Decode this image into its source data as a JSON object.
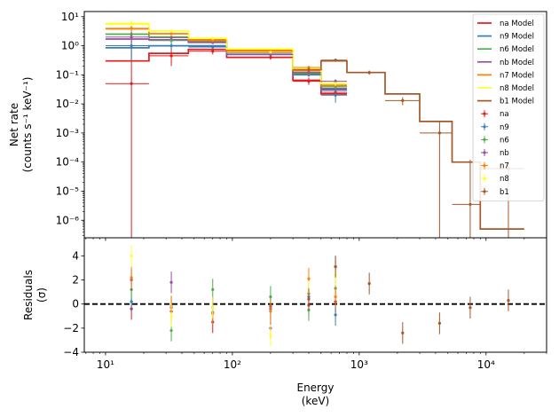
{
  "chart_data": [
    {
      "type": "line",
      "panel": "upper",
      "ylabel_lines": [
        "Net rate",
        "(counts s⁻¹ keV⁻¹)"
      ],
      "xscale": "log",
      "yscale": "log",
      "xlim": [
        6.8,
        30000
      ],
      "ylim": [
        2.5e-07,
        15
      ],
      "x_ticks": [
        {
          "value": 10,
          "label": "10¹"
        },
        {
          "value": 100,
          "label": "10²"
        },
        {
          "value": 1000,
          "label": "10³"
        },
        {
          "value": 10000,
          "label": "10⁴"
        }
      ],
      "y_ticks": [
        {
          "value": 1e-06,
          "label": "10⁻⁶"
        },
        {
          "value": 1e-05,
          "label": "10⁻⁵"
        },
        {
          "value": 0.0001,
          "label": "10⁻⁴"
        },
        {
          "value": 0.001,
          "label": "10⁻³"
        },
        {
          "value": 0.01,
          "label": "10⁻²"
        },
        {
          "value": 0.1,
          "label": "10⁻¹"
        },
        {
          "value": 1,
          "label": "10⁰"
        },
        {
          "value": 10,
          "label": "10¹"
        }
      ],
      "legend_position": "upper right",
      "models": [
        {
          "name": "na Model",
          "color": "#e41a1c",
          "edges": [
            10,
            22,
            45,
            90,
            300,
            500,
            800
          ],
          "values": [
            0.3,
            0.55,
            0.75,
            0.4,
            0.065,
            0.022
          ]
        },
        {
          "name": "n9 Model",
          "color": "#377eb8",
          "edges": [
            10,
            22,
            45,
            90,
            300,
            500,
            800
          ],
          "values": [
            0.85,
            1.0,
            1.0,
            0.5,
            0.1,
            0.03
          ]
        },
        {
          "name": "n6 Model",
          "color": "#4daf4a",
          "edges": [
            10,
            22,
            45,
            90,
            300,
            500,
            800
          ],
          "values": [
            2.5,
            2.0,
            1.4,
            0.6,
            0.12,
            0.035
          ]
        },
        {
          "name": "nb Model",
          "color": "#984ea3",
          "edges": [
            10,
            22,
            45,
            90,
            300,
            500,
            800
          ],
          "values": [
            1.7,
            1.6,
            1.3,
            0.58,
            0.11,
            0.033
          ]
        },
        {
          "name": "n7 Model",
          "color": "#ff7f00",
          "edges": [
            10,
            22,
            45,
            90,
            300,
            500,
            800
          ],
          "values": [
            3.8,
            2.6,
            1.6,
            0.7,
            0.14,
            0.042
          ]
        },
        {
          "name": "n8 Model",
          "color": "#ffff33",
          "edges": [
            10,
            22,
            45,
            90,
            300,
            500,
            800
          ],
          "values": [
            5.5,
            3.2,
            1.8,
            0.78,
            0.16,
            0.05
          ]
        },
        {
          "name": "b1 Model",
          "color": "#a65628",
          "edges": [
            300,
            500,
            800,
            1600,
            3000,
            5400,
            9000,
            20000
          ],
          "values": [
            0.15,
            0.3,
            0.12,
            0.022,
            0.0025,
            0.0001,
            5e-07
          ]
        }
      ],
      "data": [
        {
          "name": "na",
          "color": "#e41a1c",
          "points": [
            {
              "x": 16,
              "xlo": 10,
              "xhi": 22,
              "y": 0.05,
              "ylo": 2.5e-07,
              "yhi": 3.0
            },
            {
              "x": 33,
              "xlo": 22,
              "xhi": 45,
              "y": 0.45,
              "ylo": 0.2,
              "yhi": 1.0
            },
            {
              "x": 70,
              "xlo": 45,
              "xhi": 90,
              "y": 0.65,
              "ylo": 0.5,
              "yhi": 0.9
            },
            {
              "x": 200,
              "xlo": 90,
              "xhi": 300,
              "y": 0.4,
              "ylo": 0.33,
              "yhi": 0.5
            },
            {
              "x": 400,
              "xlo": 300,
              "xhi": 500,
              "y": 0.06,
              "ylo": 0.045,
              "yhi": 0.08
            },
            {
              "x": 650,
              "xlo": 500,
              "xhi": 800,
              "y": 0.025,
              "ylo": 0.02,
              "yhi": 0.03
            }
          ]
        },
        {
          "name": "n9",
          "color": "#377eb8",
          "points": [
            {
              "x": 16,
              "xlo": 10,
              "xhi": 22,
              "y": 1.0,
              "ylo": 0.3,
              "yhi": 2.0
            },
            {
              "x": 33,
              "xlo": 22,
              "xhi": 45,
              "y": 1.0,
              "ylo": 0.7,
              "yhi": 1.3
            },
            {
              "x": 70,
              "xlo": 45,
              "xhi": 90,
              "y": 0.9,
              "ylo": 0.75,
              "yhi": 1.05
            },
            {
              "x": 200,
              "xlo": 90,
              "xhi": 300,
              "y": 0.5,
              "ylo": 0.44,
              "yhi": 0.56
            },
            {
              "x": 400,
              "xlo": 300,
              "xhi": 500,
              "y": 0.1,
              "ylo": 0.085,
              "yhi": 0.12
            },
            {
              "x": 650,
              "xlo": 500,
              "xhi": 800,
              "y": 0.02,
              "ylo": 0.011,
              "yhi": 0.03
            }
          ]
        },
        {
          "name": "n6",
          "color": "#4daf4a",
          "points": [
            {
              "x": 16,
              "xlo": 10,
              "xhi": 22,
              "y": 2.5,
              "ylo": 1.5,
              "yhi": 3.5
            },
            {
              "x": 33,
              "xlo": 22,
              "xhi": 45,
              "y": 1.5,
              "ylo": 1.2,
              "yhi": 1.8
            },
            {
              "x": 70,
              "xlo": 45,
              "xhi": 90,
              "y": 1.5,
              "ylo": 1.3,
              "yhi": 1.7
            },
            {
              "x": 200,
              "xlo": 90,
              "xhi": 300,
              "y": 0.65,
              "ylo": 0.58,
              "yhi": 0.72
            },
            {
              "x": 400,
              "xlo": 300,
              "xhi": 500,
              "y": 0.11,
              "ylo": 0.095,
              "yhi": 0.13
            },
            {
              "x": 650,
              "xlo": 500,
              "xhi": 800,
              "y": 0.04,
              "ylo": 0.032,
              "yhi": 0.048
            }
          ]
        },
        {
          "name": "nb",
          "color": "#984ea3",
          "points": [
            {
              "x": 16,
              "xlo": 10,
              "xhi": 22,
              "y": 2.0,
              "ylo": 1.3,
              "yhi": 2.8
            },
            {
              "x": 33,
              "xlo": 22,
              "xhi": 45,
              "y": 1.9,
              "ylo": 1.6,
              "yhi": 2.2
            },
            {
              "x": 70,
              "xlo": 45,
              "xhi": 90,
              "y": 1.3,
              "ylo": 1.15,
              "yhi": 1.45
            },
            {
              "x": 200,
              "xlo": 90,
              "xhi": 300,
              "y": 0.5,
              "ylo": 0.45,
              "yhi": 0.56
            },
            {
              "x": 400,
              "xlo": 300,
              "xhi": 500,
              "y": 0.12,
              "ylo": 0.1,
              "yhi": 0.14
            },
            {
              "x": 650,
              "xlo": 500,
              "xhi": 800,
              "y": 0.06,
              "ylo": 0.05,
              "yhi": 0.07
            }
          ]
        },
        {
          "name": "n7",
          "color": "#ff7f00",
          "points": [
            {
              "x": 16,
              "xlo": 10,
              "xhi": 22,
              "y": 4.0,
              "ylo": 3.0,
              "yhi": 5.0
            },
            {
              "x": 33,
              "xlo": 22,
              "xhi": 45,
              "y": 2.6,
              "ylo": 2.2,
              "yhi": 3.0
            },
            {
              "x": 70,
              "xlo": 45,
              "xhi": 90,
              "y": 1.5,
              "ylo": 1.3,
              "yhi": 1.7
            },
            {
              "x": 200,
              "xlo": 90,
              "xhi": 300,
              "y": 0.65,
              "ylo": 0.58,
              "yhi": 0.72
            },
            {
              "x": 400,
              "xlo": 300,
              "xhi": 500,
              "y": 0.18,
              "ylo": 0.16,
              "yhi": 0.2
            },
            {
              "x": 650,
              "xlo": 500,
              "xhi": 800,
              "y": 0.045,
              "ylo": 0.038,
              "yhi": 0.052
            }
          ]
        },
        {
          "name": "n8",
          "color": "#ffff33",
          "points": [
            {
              "x": 16,
              "xlo": 10,
              "xhi": 22,
              "y": 6.0,
              "ylo": 4.8,
              "yhi": 7.2
            },
            {
              "x": 33,
              "xlo": 22,
              "xhi": 45,
              "y": 3.2,
              "ylo": 2.8,
              "yhi": 3.6
            },
            {
              "x": 70,
              "xlo": 45,
              "xhi": 90,
              "y": 1.8,
              "ylo": 1.6,
              "yhi": 2.0
            },
            {
              "x": 200,
              "xlo": 90,
              "xhi": 300,
              "y": 0.6,
              "ylo": 0.54,
              "yhi": 0.66
            },
            {
              "x": 400,
              "xlo": 300,
              "xhi": 500,
              "y": 0.15,
              "ylo": 0.13,
              "yhi": 0.17
            },
            {
              "x": 650,
              "xlo": 500,
              "xhi": 800,
              "y": 0.05,
              "ylo": 0.042,
              "yhi": 0.058
            }
          ]
        },
        {
          "name": "b1",
          "color": "#a65628",
          "points": [
            {
              "x": 400,
              "xlo": 300,
              "xhi": 500,
              "y": 0.15,
              "ylo": 0.12,
              "yhi": 0.18
            },
            {
              "x": 650,
              "xlo": 500,
              "xhi": 800,
              "y": 0.32,
              "ylo": 0.28,
              "yhi": 0.36
            },
            {
              "x": 1200,
              "xlo": 800,
              "xhi": 1600,
              "y": 0.12,
              "ylo": 0.1,
              "yhi": 0.14
            },
            {
              "x": 2200,
              "xlo": 1600,
              "xhi": 3000,
              "y": 0.013,
              "ylo": 0.009,
              "yhi": 0.017
            },
            {
              "x": 4300,
              "xlo": 3000,
              "xhi": 5400,
              "y": 0.001,
              "ylo": 2.5e-07,
              "yhi": 0.0025
            },
            {
              "x": 7500,
              "xlo": 5400,
              "xhi": 9000,
              "y": 3.5e-06,
              "ylo": 2.5e-07,
              "yhi": 0.00012
            },
            {
              "x": 15000,
              "xlo": 9000,
              "xhi": 20000,
              "y": 6e-05,
              "ylo": 2.5e-07,
              "yhi": 0.0001
            }
          ]
        }
      ]
    },
    {
      "type": "scatter",
      "panel": "lower",
      "xlabel_lines": [
        "Energy",
        "(keV)"
      ],
      "ylabel_lines": [
        "Residuals",
        "(σ)"
      ],
      "xscale": "log",
      "xlim": [
        6.8,
        30000
      ],
      "ylim": [
        -4,
        5.5
      ],
      "x_ticks": [
        {
          "value": 10,
          "label": "10¹"
        },
        {
          "value": 100,
          "label": "10²"
        },
        {
          "value": 1000,
          "label": "10³"
        },
        {
          "value": 10000,
          "label": "10⁴"
        }
      ],
      "y_ticks": [
        {
          "value": -4,
          "label": "−4"
        },
        {
          "value": -2,
          "label": "−2"
        },
        {
          "value": 0,
          "label": "0"
        },
        {
          "value": 2,
          "label": "2"
        },
        {
          "value": 4,
          "label": "4"
        }
      ],
      "reference_line": 0,
      "series": [
        {
          "name": "na",
          "color": "#e41a1c",
          "points": [
            [
              16,
              -0.4
            ],
            [
              33,
              -0.6
            ],
            [
              70,
              -1.5
            ],
            [
              200,
              -0.2
            ],
            [
              400,
              -0.1
            ],
            [
              650,
              0.2
            ]
          ]
        },
        {
          "name": "n9",
          "color": "#377eb8",
          "points": [
            [
              16,
              0.2
            ],
            [
              33,
              -0.3
            ],
            [
              70,
              -0.7
            ],
            [
              200,
              -0.4
            ],
            [
              400,
              0.6
            ],
            [
              650,
              -0.9
            ]
          ]
        },
        {
          "name": "n6",
          "color": "#4daf4a",
          "points": [
            [
              16,
              1.2
            ],
            [
              33,
              -2.2
            ],
            [
              70,
              1.2
            ],
            [
              200,
              0.6
            ],
            [
              400,
              -0.5
            ],
            [
              650,
              1.3
            ]
          ]
        },
        {
          "name": "nb",
          "color": "#984ea3",
          "points": [
            [
              16,
              2.0
            ],
            [
              33,
              1.8
            ],
            [
              70,
              -0.3
            ],
            [
              200,
              -2.0
            ],
            [
              400,
              0.9
            ],
            [
              650,
              3.1
            ]
          ]
        },
        {
          "name": "n7",
          "color": "#ff7f00",
          "points": [
            [
              16,
              2.2
            ],
            [
              33,
              -0.2
            ],
            [
              70,
              -0.8
            ],
            [
              200,
              -0.6
            ],
            [
              400,
              2.1
            ],
            [
              650,
              0.6
            ]
          ]
        },
        {
          "name": "n8",
          "color": "#ffff33",
          "points": [
            [
              16,
              4.0
            ],
            [
              33,
              -1.0
            ],
            [
              70,
              -0.3
            ],
            [
              200,
              -2.6
            ],
            [
              400,
              1.0
            ],
            [
              650,
              2.4
            ]
          ]
        },
        {
          "name": "b1",
          "color": "#a65628",
          "points": [
            [
              400,
              0.4
            ],
            [
              650,
              3.1
            ],
            [
              1200,
              1.7
            ],
            [
              2200,
              -2.4
            ],
            [
              4300,
              -1.6
            ],
            [
              7500,
              -0.3
            ],
            [
              15000,
              0.3
            ]
          ]
        }
      ]
    }
  ]
}
